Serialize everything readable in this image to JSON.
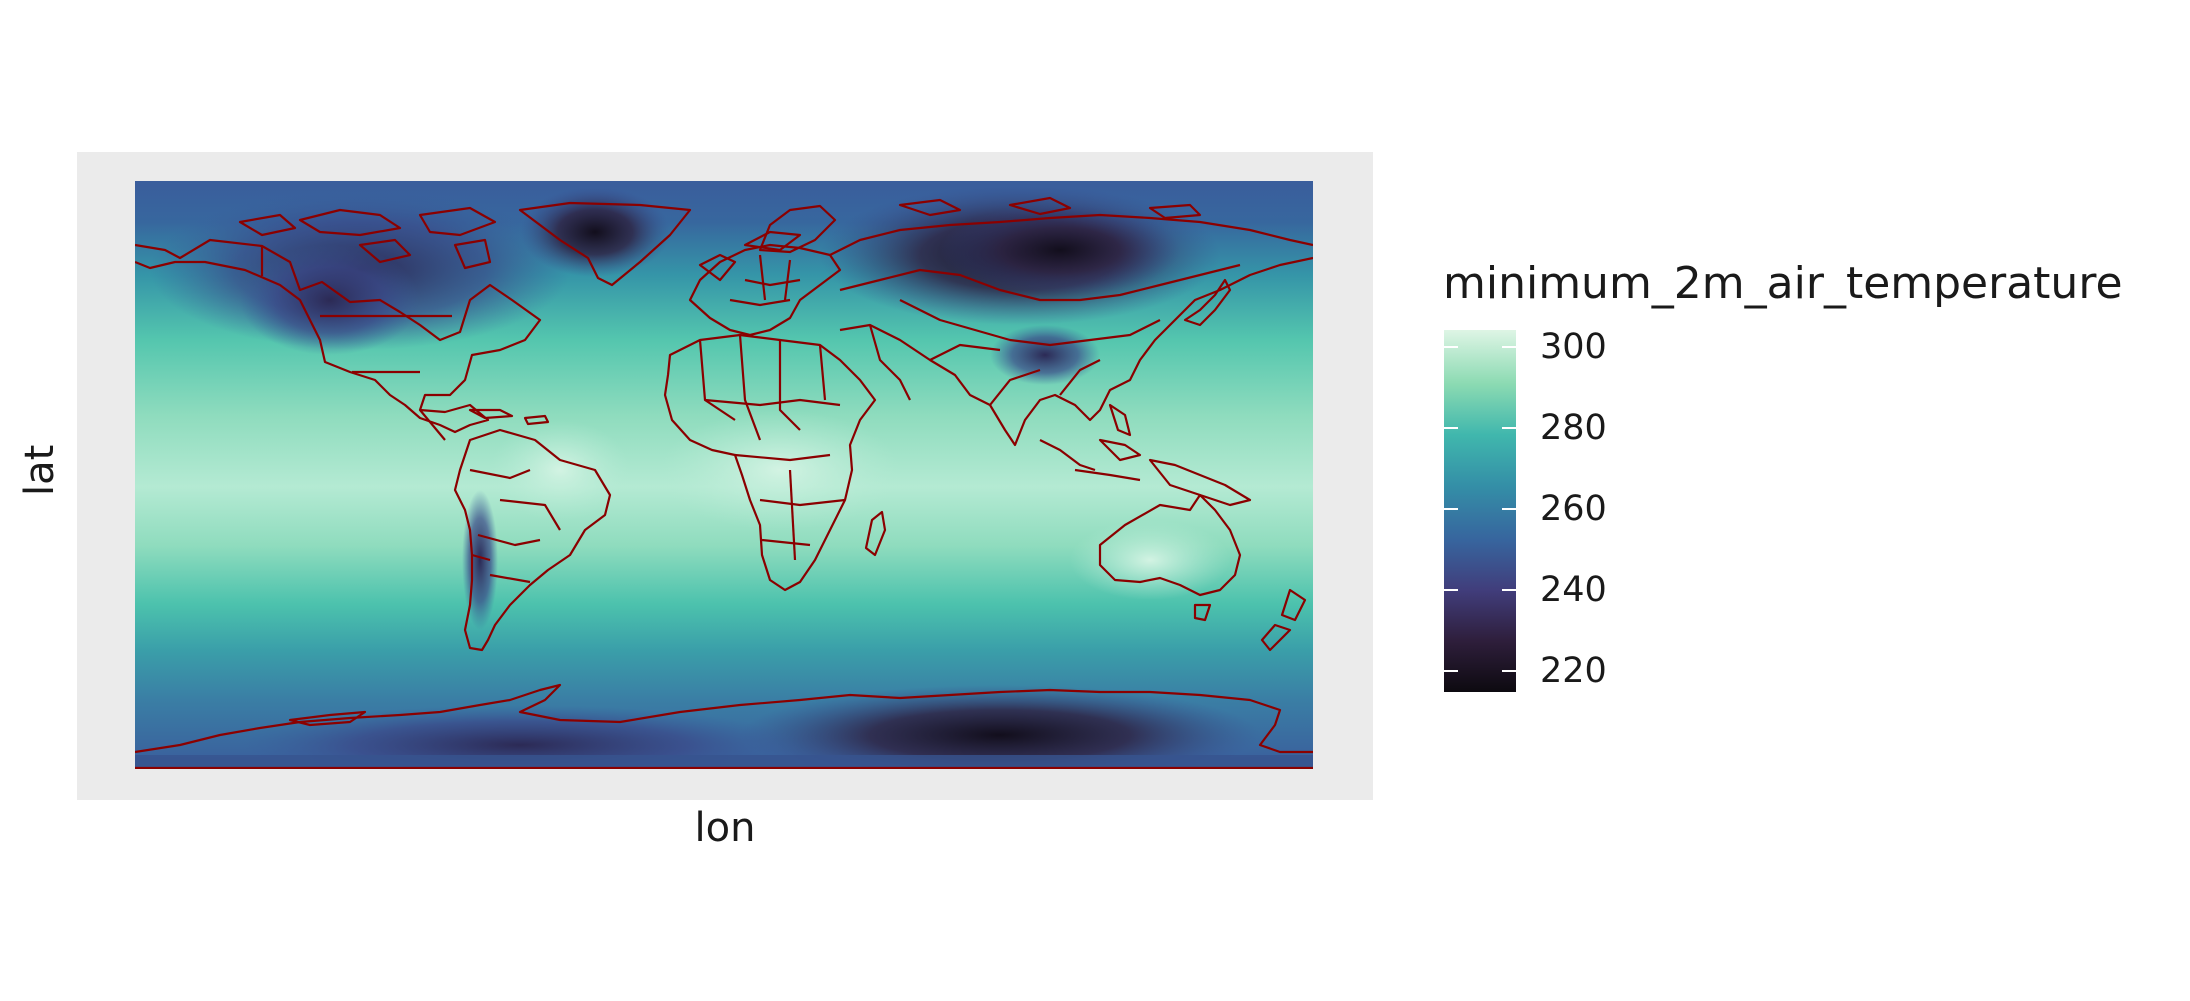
{
  "axes": {
    "x_label": "lon",
    "y_label": "lat"
  },
  "legend": {
    "title": "minimum_2m_air_temperature",
    "breaks": [
      "300",
      "280",
      "260",
      "240",
      "220"
    ],
    "range": [
      215,
      305
    ],
    "palette": [
      "#0d0a10",
      "#2e1e3b",
      "#413d7b",
      "#37659e",
      "#348fa7",
      "#40b7ad",
      "#8bdab2",
      "#def5e5"
    ]
  },
  "chart_data": {
    "type": "heatmap",
    "variable": "minimum_2m_air_temperature",
    "xlabel": "lon",
    "ylabel": "lat",
    "color_scale_range": [
      215,
      305
    ],
    "legend_ticks": [
      300,
      280,
      260,
      240,
      220
    ],
    "overlay": "country borders",
    "border_color": "#8b0000"
  }
}
